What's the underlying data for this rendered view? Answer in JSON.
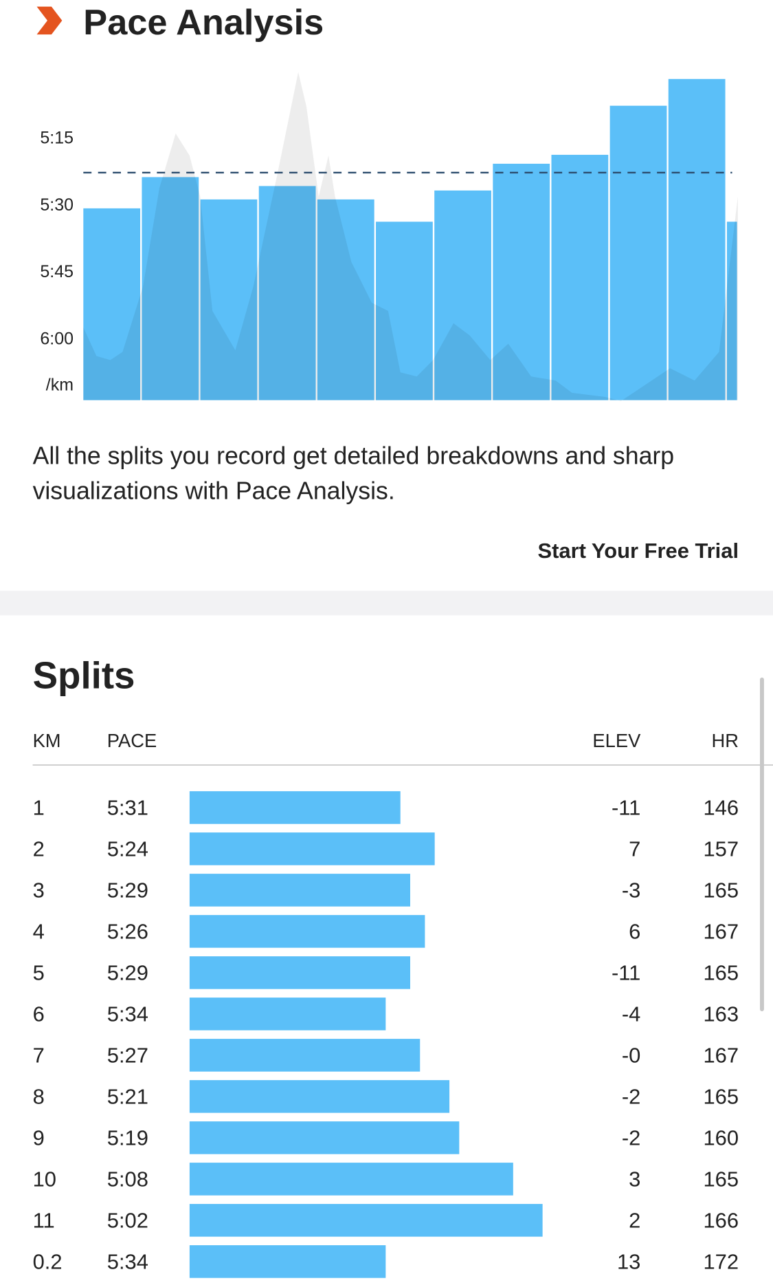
{
  "header": {
    "title": "Pace Analysis"
  },
  "chart": {
    "type": "bar",
    "color": "#5bbff8",
    "ylim": [
      374,
      300
    ],
    "yticks": [
      {
        "value": 315,
        "label": "5:15"
      },
      {
        "value": 330,
        "label": "5:30"
      },
      {
        "value": 345,
        "label": "5:45"
      },
      {
        "value": 360,
        "label": "6:00"
      }
    ],
    "y_unit": "/km",
    "average_pace": 323,
    "average_color": "#2c4d6e"
  },
  "description": [
    "All the splits you record get detailed breakdowns and sharp",
    "visualizations with Pace Analysis."
  ],
  "cta": "Start Your Free Trial",
  "splits": {
    "title": "Splits",
    "columns": [
      "KM",
      "PACE",
      "ELEV",
      "HR"
    ],
    "rows": [
      {
        "km": 1,
        "pace": {
          "value": 331,
          "label": "5:31"
        },
        "elev": -11,
        "hr": 146
      },
      {
        "km": 2,
        "pace": {
          "value": 324,
          "label": "5:24"
        },
        "elev": 7,
        "hr": 157
      },
      {
        "km": 3,
        "pace": {
          "value": 329,
          "label": "5:29"
        },
        "elev": -3,
        "hr": 165
      },
      {
        "km": 4,
        "pace": {
          "value": 326,
          "label": "5:26"
        },
        "elev": 6,
        "hr": 167
      },
      {
        "km": 5,
        "pace": {
          "value": 329,
          "label": "5:29"
        },
        "elev": -11,
        "hr": 165
      },
      {
        "km": 6,
        "pace": {
          "value": 334,
          "label": "5:34"
        },
        "elev": -4,
        "hr": 163
      },
      {
        "km": 7,
        "pace": {
          "value": 327,
          "label": "5:27"
        },
        "elev": {
          "value": 0,
          "label": "-0"
        },
        "hr": 167
      },
      {
        "km": 8,
        "pace": {
          "value": 321,
          "label": "5:21"
        },
        "elev": -2,
        "hr": 165
      },
      {
        "km": 9,
        "pace": {
          "value": 319,
          "label": "5:19"
        },
        "elev": -2,
        "hr": 160
      },
      {
        "km": 10,
        "pace": {
          "value": 308,
          "label": "5:08"
        },
        "elev": 3,
        "hr": 165
      },
      {
        "km": 11,
        "pace": {
          "value": 302,
          "label": "5:02"
        },
        "elev": 2,
        "hr": 166
      },
      {
        "km": 0.2,
        "pace": {
          "value": 334,
          "label": "5:34"
        },
        "elev": 13,
        "hr": 172
      }
    ]
  }
}
